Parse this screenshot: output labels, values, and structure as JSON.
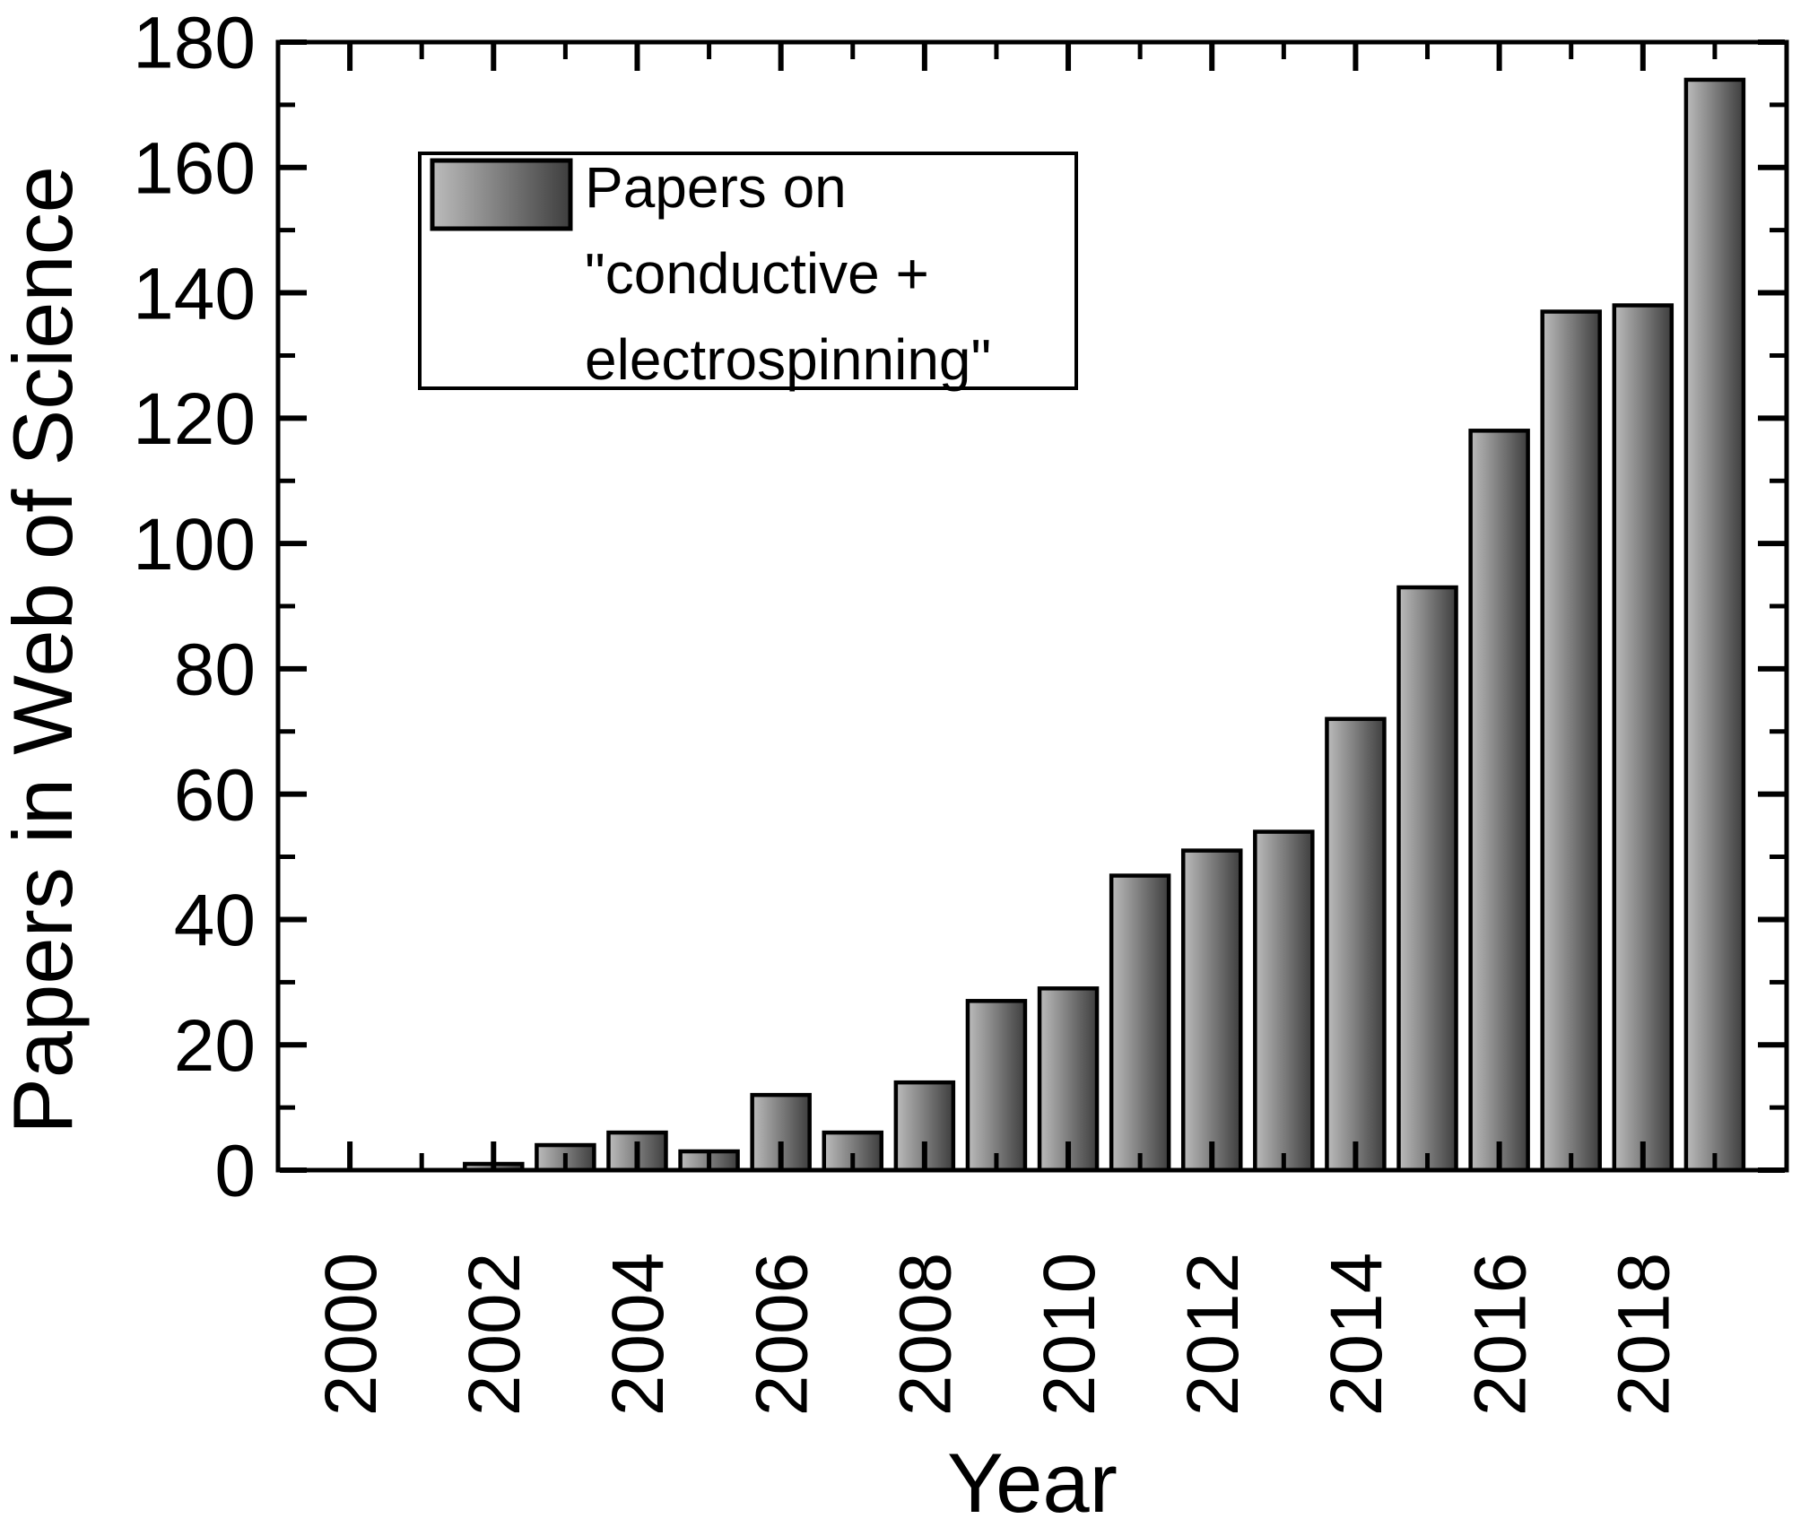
{
  "figure": {
    "background": "#ffffff",
    "description": "Bar chart of yearly publication counts"
  },
  "colors": {
    "background": "#ffffff",
    "text": "#000000",
    "frame": "#000000",
    "bar_border": "#000000",
    "bar_gradient_left": "#bcbcbc",
    "bar_gradient_right": "#3e3e3e"
  },
  "legend": {
    "lines": [
      "Papers on",
      "\"conductive +",
      "electrospinning\""
    ]
  },
  "chart_data": {
    "type": "bar",
    "title": "",
    "xlabel": "Year",
    "ylabel": "Papers in Web of Science",
    "x": [
      2002,
      2003,
      2004,
      2005,
      2006,
      2007,
      2008,
      2009,
      2010,
      2011,
      2012,
      2013,
      2014,
      2015,
      2016,
      2017,
      2018,
      2019
    ],
    "values": [
      1,
      4,
      6,
      3,
      12,
      6,
      14,
      27,
      29,
      47,
      51,
      54,
      72,
      93,
      118,
      137,
      138,
      174
    ],
    "series_name": "Papers on \"conductive + electrospinning\"",
    "xlim": [
      1999,
      2020
    ],
    "ylim": [
      0,
      180
    ],
    "y_major_step": 20,
    "y_minor_step": 10,
    "y_tick_labels": [
      "0",
      "20",
      "40",
      "60",
      "80",
      "100",
      "120",
      "140",
      "160",
      "180"
    ],
    "x_major_ticks": [
      2000,
      2002,
      2004,
      2006,
      2008,
      2010,
      2012,
      2014,
      2016,
      2018
    ],
    "x_minor_ticks": [
      2001,
      2003,
      2005,
      2007,
      2009,
      2011,
      2013,
      2015,
      2017,
      2019
    ],
    "x_tick_labels": [
      "2000",
      "2002",
      "2004",
      "2006",
      "2008",
      "2010",
      "2012",
      "2014",
      "2016",
      "2018"
    ],
    "x_tick_label_rotation_deg": -90,
    "grid": false,
    "legend_position": "upper-left-inside",
    "tick_direction": "in",
    "mirrored_ticks": true
  }
}
